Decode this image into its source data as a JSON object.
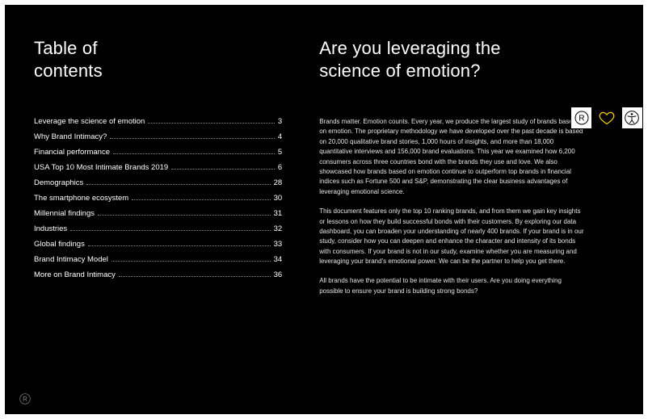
{
  "toc": {
    "title_line1": "Table of",
    "title_line2": "contents",
    "items": [
      {
        "label": "Leverage the science of emotion",
        "page": "3"
      },
      {
        "label": "Why Brand Intimacy?",
        "page": "4"
      },
      {
        "label": "Financial performance",
        "page": "5"
      },
      {
        "label": "USA Top 10 Most Intimate Brands 2019",
        "page": "6"
      },
      {
        "label": "Demographics",
        "page": "28"
      },
      {
        "label": "The smartphone ecosystem",
        "page": "30"
      },
      {
        "label": "Millennial findings",
        "page": "31"
      },
      {
        "label": "Industries",
        "page": "32"
      },
      {
        "label": "Global findings",
        "page": "33"
      },
      {
        "label": "Brand Intimacy Model",
        "page": "34"
      },
      {
        "label": "More on Brand Intimacy",
        "page": "36"
      }
    ]
  },
  "right": {
    "title_line1": "Are you leveraging the",
    "title_line2": "science of emotion?",
    "paragraphs": [
      "Brands matter. Emotion counts. Every year, we produce the largest study of brands based on emotion. The proprietary methodology we have developed over the past decade is based on 20,000 qualitative brand stories, 1,000 hours of insights, and more than 18,000 quantitative interviews and 156,000 brand evaluations. This year we examined how 6,200 consumers across three countries bond with the brands they use and love. We also showcased how brands based on emotion continue to outperform top brands in financial indices such as Fortune 500 and S&P, demonstrating the clear business advantages of leveraging emotional science.",
      "This document features only the top 10 ranking brands, and from them we gain key insights or lessons on how they build successful bonds with their customers. By exploring our data dashboard, you can broaden your understanding of nearly 400 brands. If your brand is in our study, consider how you can deepen and enhance the character and intensity of its bonds with consumers. If your brand is not in our study, examine whether you are measuring and leveraging your brand's emotional power. We can be the partner to help you get there.",
      "All brands have the potential to be intimate with their users. Are you doing everything possible to ensure your brand is building strong bonds?"
    ]
  },
  "colors": {
    "bg": "#000000",
    "text": "#ffffff",
    "body_text": "#e6e6e6",
    "dots": "#888888",
    "heart": "#ffd400"
  }
}
